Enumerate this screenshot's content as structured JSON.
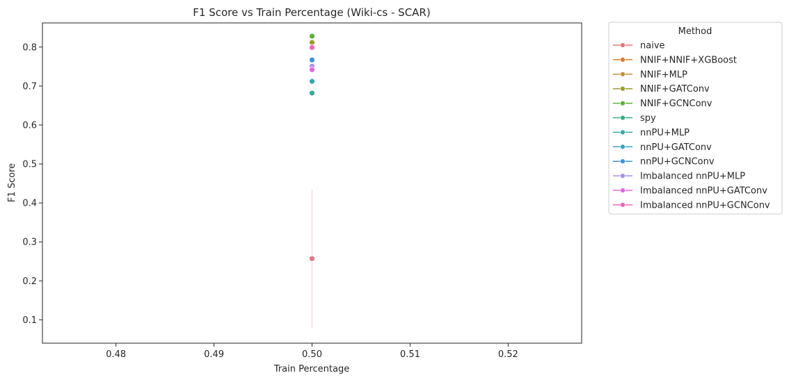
{
  "chart_data": {
    "type": "scatter",
    "title": "F1 Score vs Train Percentage (Wiki-cs - SCAR)",
    "xlabel": "Train Percentage",
    "ylabel": "F1 Score",
    "xlim": [
      0.4725,
      0.5275
    ],
    "ylim": [
      0.04,
      0.862
    ],
    "x_ticks": [
      "0.48",
      "0.49",
      "0.50",
      "0.51",
      "0.52"
    ],
    "y_ticks": [
      "0.1",
      "0.2",
      "0.3",
      "0.4",
      "0.5",
      "0.6",
      "0.7",
      "0.8"
    ],
    "grid": false,
    "legend": {
      "title": "Method",
      "placement": "outside right"
    },
    "series": [
      {
        "name": "naive",
        "color": "#e8747c",
        "x": [
          0.5
        ],
        "y": [
          0.257
        ],
        "ci": [
          0.078,
          0.435
        ]
      },
      {
        "name": "NNIF+NNIF+XGBoost",
        "color": "#e27d2a",
        "x": [
          0.5
        ],
        "y": [
          null
        ]
      },
      {
        "name": "NNIF+MLP",
        "color": "#c1913a",
        "x": [
          0.5
        ],
        "y": [
          null
        ]
      },
      {
        "name": "NNIF+GATConv",
        "color": "#9a9e2a",
        "x": [
          0.5
        ],
        "y": [
          0.812
        ]
      },
      {
        "name": "NNIF+GCNConv",
        "color": "#5ab13a",
        "x": [
          0.5
        ],
        "y": [
          0.828
        ]
      },
      {
        "name": "spy",
        "color": "#35ad8a",
        "x": [
          0.5
        ],
        "y": [
          null
        ]
      },
      {
        "name": "nnPU+MLP",
        "color": "#35aaa3",
        "x": [
          0.5
        ],
        "y": [
          0.682
        ]
      },
      {
        "name": "nnPU+GATConv",
        "color": "#34a5bd",
        "x": [
          0.5
        ],
        "y": [
          0.712
        ]
      },
      {
        "name": "nnPU+GCNConv",
        "color": "#3b93dd",
        "x": [
          0.5
        ],
        "y": [
          0.767
        ]
      },
      {
        "name": "Imbalanced nnPU+MLP",
        "color": "#a98cf0",
        "x": [
          0.5
        ],
        "y": [
          0.751
        ]
      },
      {
        "name": "Imbalanced nnPU+GATConv",
        "color": "#e465e6",
        "x": [
          0.5
        ],
        "y": [
          0.742
        ]
      },
      {
        "name": "Imbalanced nnPU+GCNConv",
        "color": "#f065b4",
        "x": [
          0.5
        ],
        "y": [
          0.799
        ]
      }
    ]
  }
}
